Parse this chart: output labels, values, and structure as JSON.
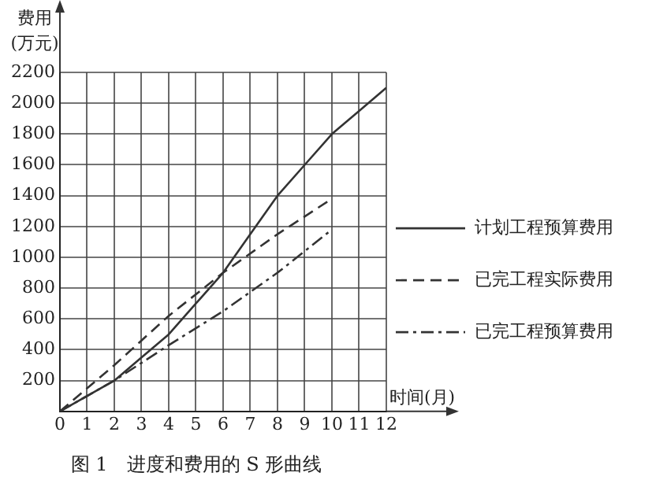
{
  "chart_data": {
    "type": "line",
    "title": "图 1　进度和费用的 S 形曲线",
    "xlabel": "时间(月)",
    "ylabel": "费用\n(万元)",
    "xlim": [
      0,
      12
    ],
    "xticks": [
      0,
      1,
      2,
      3,
      4,
      5,
      6,
      7,
      8,
      9,
      10,
      11,
      12
    ],
    "ylim": [
      0,
      2200
    ],
    "yticks": [
      {
        "value": 0,
        "label": null
      },
      200,
      400,
      600,
      800,
      1000,
      1200,
      1400,
      1600,
      1800,
      2000,
      2200
    ],
    "grid": true,
    "legend": "right",
    "marker": "none",
    "series": [
      {
        "name": "计划工程预算费用",
        "color": "#333333",
        "line_style": "solid",
        "x": [
          0,
          2,
          3,
          4,
          5,
          6,
          7,
          8,
          9,
          10,
          11,
          12
        ],
        "values": [
          0,
          200,
          350,
          500,
          700,
          900,
          1150,
          1400,
          1600,
          1800,
          1950,
          2100
        ]
      },
      {
        "name": "已完工程实际费用",
        "color": "#333333",
        "line_style": "dashed",
        "x": [
          0,
          2,
          4,
          6,
          8,
          10
        ],
        "values": [
          0,
          300,
          620,
          900,
          1150,
          1380
        ]
      },
      {
        "name": "已完工程预算费用",
        "color": "#333333",
        "line_style": "dashdot",
        "x": [
          0,
          2,
          4,
          6,
          8,
          10
        ],
        "values": [
          0,
          200,
          430,
          650,
          900,
          1180
        ]
      }
    ]
  }
}
